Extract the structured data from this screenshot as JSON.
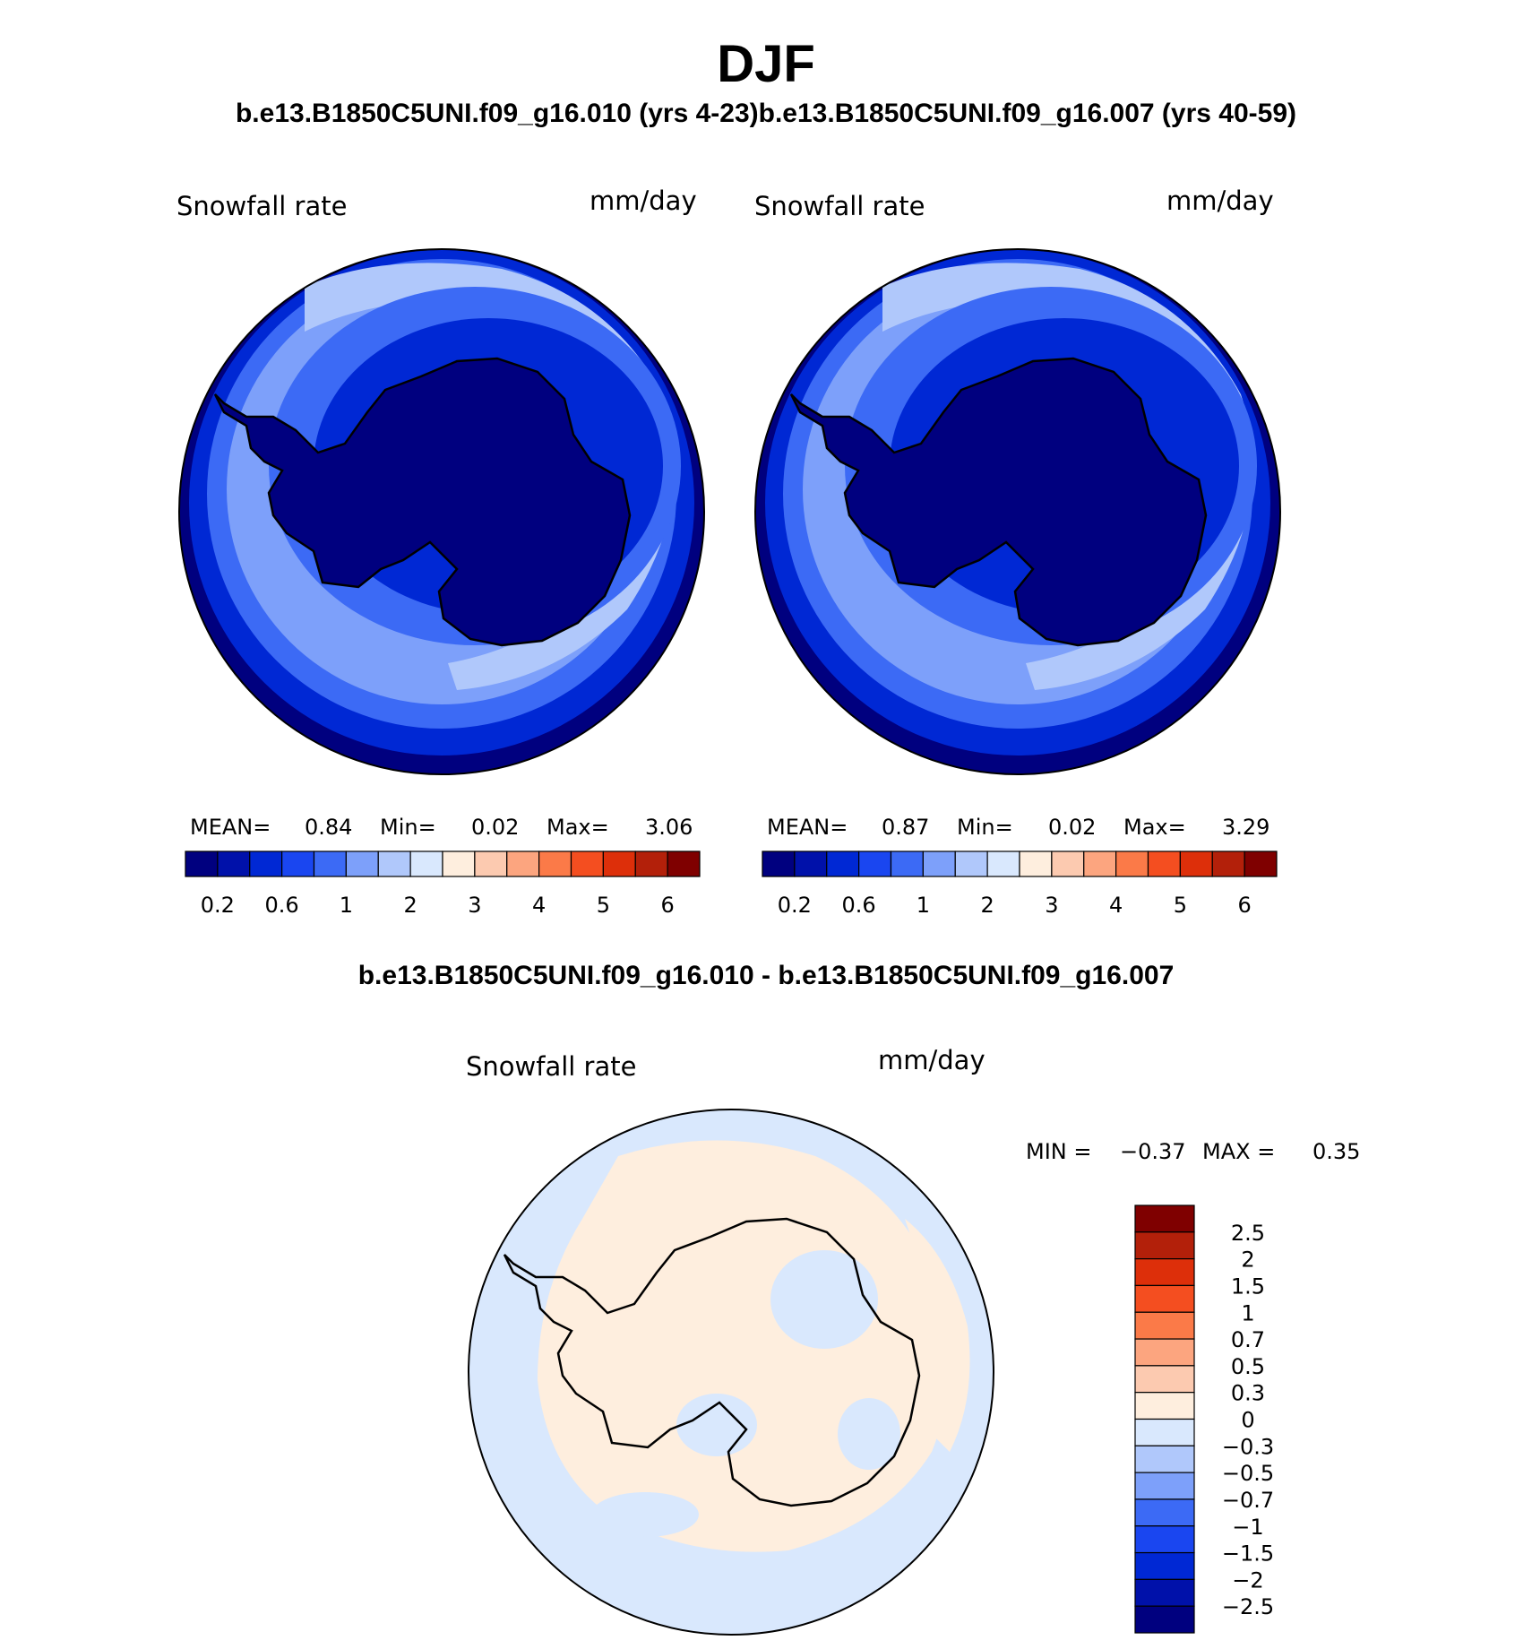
{
  "title": "DJF",
  "subtitle_top": "b.e13.B1850C5UNI.f09_g16.010 (yrs 4-23)b.e13.B1850C5UNI.f09_g16.007 (yrs 40-59)",
  "subtitle_diff": "b.e13.B1850C5UNI.f09_g16.010 - b.e13.B1850C5UNI.f09_g16.007",
  "panels": [
    {
      "variable": "Snowfall rate",
      "units": "mm/day",
      "mean_label": "MEAN=",
      "mean": "0.84",
      "min_label": "Min=",
      "min": "0.02",
      "max_label": "Max=",
      "max": "3.06"
    },
    {
      "variable": "Snowfall rate",
      "units": "mm/day",
      "mean_label": "MEAN=",
      "mean": "0.87",
      "min_label": "Min=",
      "min": "0.02",
      "max_label": "Max=",
      "max": "3.29"
    }
  ],
  "diff_panel": {
    "variable": "Snowfall rate",
    "units": "mm/day",
    "min_label": "MIN =",
    "min": "−0.37",
    "max_label": "MAX =",
    "max": "0.35"
  },
  "colorbar_top": {
    "colors": [
      "#00007f",
      "#0011aa",
      "#0028d4",
      "#1a46f0",
      "#3c6af5",
      "#7da0fa",
      "#b0c8fb",
      "#d9e8fd",
      "#feeede",
      "#fccab0",
      "#fca57f",
      "#fb7a48",
      "#f44e20",
      "#dd2f0a",
      "#b3200a",
      "#7f0000"
    ],
    "labels": [
      "0.2",
      "0.6",
      "1",
      "2",
      "3",
      "4",
      "5",
      "6"
    ]
  },
  "colorbar_diff": {
    "colors": [
      "#00007f",
      "#0011aa",
      "#0028d4",
      "#1a46f0",
      "#3c6af5",
      "#7da0fa",
      "#b0c8fb",
      "#d9e8fd",
      "#feeede",
      "#fccab0",
      "#fca57f",
      "#fb7a48",
      "#f44e20",
      "#dd2f0a",
      "#b3200a",
      "#7f0000"
    ],
    "labels": [
      "2.5",
      "2",
      "1.5",
      "1",
      "0.7",
      "0.5",
      "0.3",
      "0",
      "−0.3",
      "−0.5",
      "−0.7",
      "−1",
      "−1.5",
      "−2",
      "−2.5"
    ]
  },
  "map_colors": {
    "ring1": "#00007f",
    "ring2": "#0028d4",
    "ring3": "#3c6af5",
    "ocean": "#7da0fa",
    "light": "#b0c8fb",
    "ice": "#00007f",
    "coast": "#0028d4",
    "diff_neg": "#d9e8fd",
    "diff_pos": "#feeede",
    "diff_blue": "#7da0fa"
  }
}
